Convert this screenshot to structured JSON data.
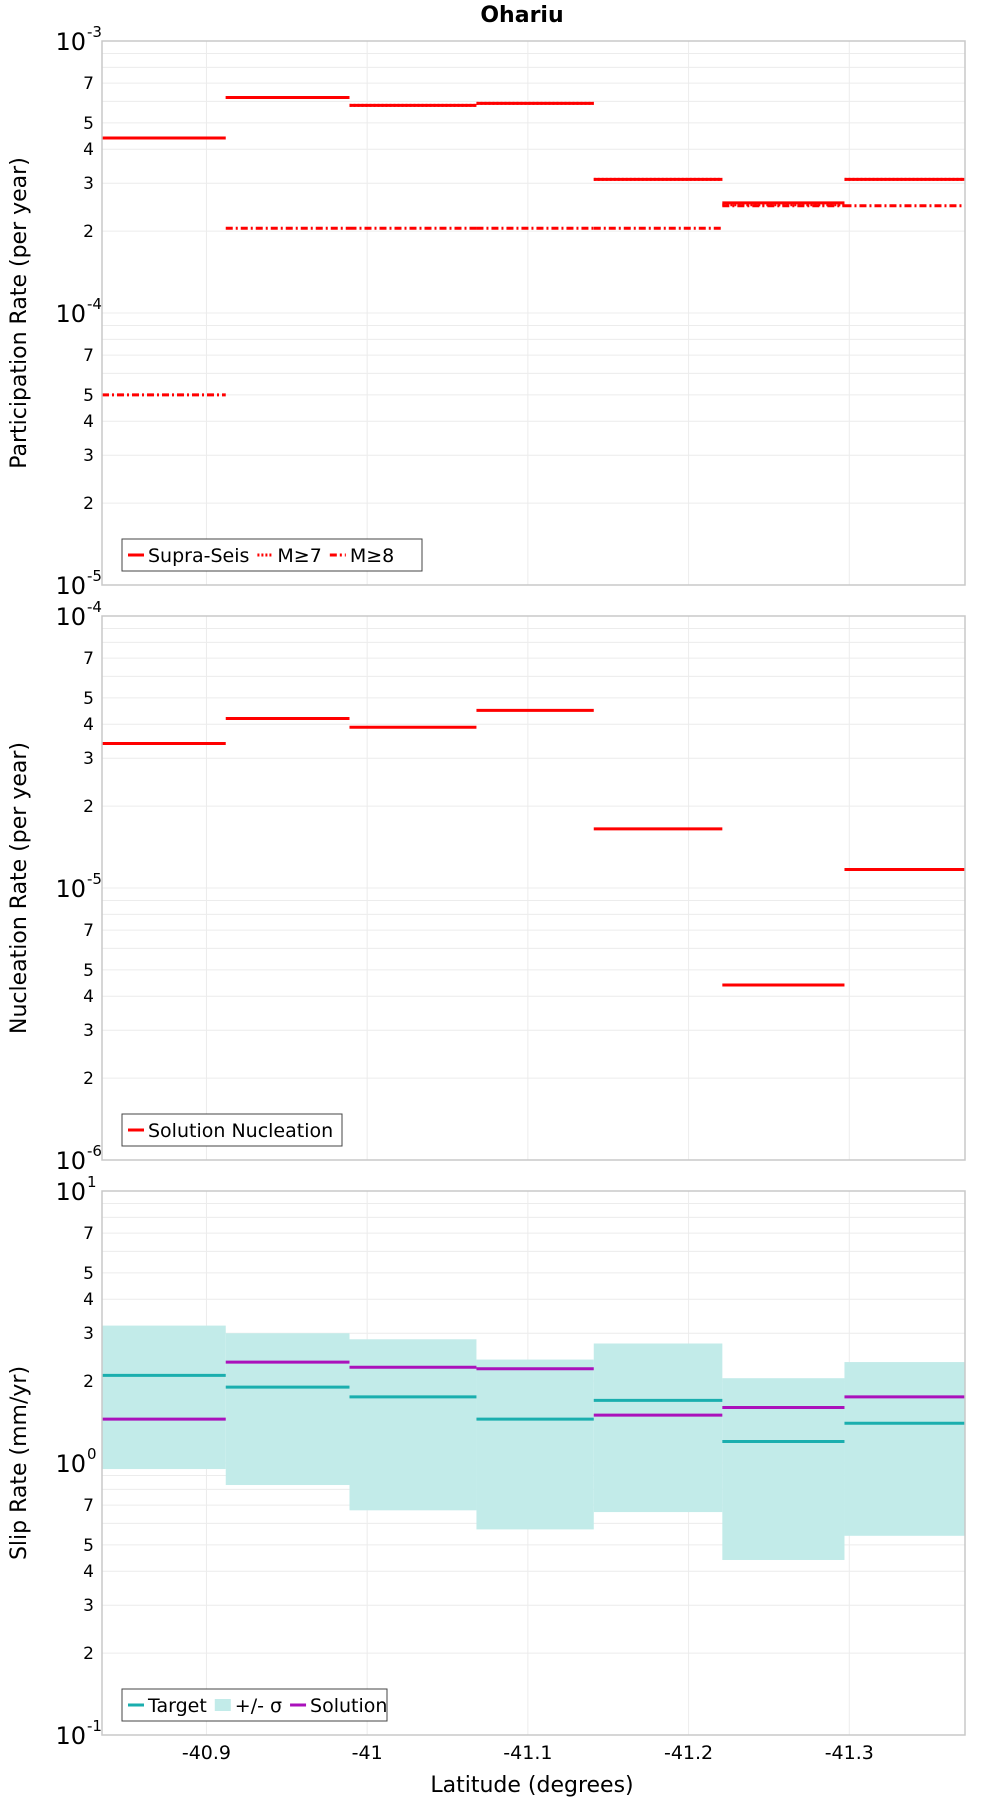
{
  "chart_data": {
    "title": "Ohariu",
    "xlabel": "Latitude (degrees)",
    "xlim": [
      -40.835,
      -41.372
    ],
    "xticks": [
      -40.9,
      -41,
      -41.1,
      -41.2,
      -41.3
    ],
    "xtick_labels": [
      "-40.9",
      "-41",
      "-41.1",
      "-41.2",
      "-41.3"
    ],
    "grid": true,
    "panels": [
      {
        "type": "step",
        "ylabel": "Participation Rate (per year)",
        "yscale": "log",
        "ylim": [
          1e-05,
          0.001
        ],
        "major_ticks": [
          {
            "base": "10",
            "exp": "-5"
          },
          {
            "base": "10",
            "exp": "-4"
          },
          {
            "base": "10",
            "exp": "-3"
          }
        ],
        "legend_position": "bottom-left",
        "series": [
          {
            "name": "Supra-Seis",
            "color": "#ff0000",
            "dash": "solid",
            "segments": [
              [
                -40.835,
                -40.912,
                0.00044
              ],
              [
                -40.912,
                -40.989,
                0.00062
              ],
              [
                -40.989,
                -41.068,
                0.00058
              ],
              [
                -41.068,
                -41.141,
                0.00059
              ],
              [
                -41.141,
                -41.221,
                0.00031
              ],
              [
                -41.221,
                -41.297,
                0.000254
              ],
              [
                -41.297,
                -41.372,
                0.00031
              ]
            ]
          },
          {
            "name": "M≥7",
            "color": "#ff0000",
            "dash": "dotted",
            "segments": [
              [
                -40.835,
                -40.912,
                0.00044
              ],
              [
                -40.912,
                -40.989,
                0.00062
              ],
              [
                -40.989,
                -41.068,
                0.00058
              ],
              [
                -41.068,
                -41.141,
                0.00059
              ],
              [
                -41.141,
                -41.221,
                0.00031
              ],
              [
                -41.221,
                -41.297,
                0.00025
              ],
              [
                -41.297,
                -41.372,
                0.00031
              ]
            ]
          },
          {
            "name": "M≥8",
            "color": "#ff0000",
            "dash": "dashdot",
            "segments": [
              [
                -40.835,
                -40.912,
                5e-05
              ],
              [
                -40.912,
                -40.989,
                0.000205
              ],
              [
                -40.989,
                -41.068,
                0.000205
              ],
              [
                -41.068,
                -41.141,
                0.000205
              ],
              [
                -41.141,
                -41.221,
                0.000205
              ],
              [
                -41.221,
                -41.297,
                0.000248
              ],
              [
                -41.297,
                -41.372,
                0.000248
              ]
            ]
          }
        ]
      },
      {
        "type": "step",
        "ylabel": "Nucleation Rate (per year)",
        "yscale": "log",
        "ylim": [
          1e-06,
          0.0001
        ],
        "major_ticks": [
          {
            "base": "10",
            "exp": "-6"
          },
          {
            "base": "10",
            "exp": "-5"
          },
          {
            "base": "10",
            "exp": "-4"
          }
        ],
        "legend_position": "bottom-left",
        "series": [
          {
            "name": "Solution Nucleation",
            "color": "#ff0000",
            "dash": "solid",
            "segments": [
              [
                -40.835,
                -40.912,
                3.4e-05
              ],
              [
                -40.912,
                -40.989,
                4.2e-05
              ],
              [
                -40.989,
                -41.068,
                3.9e-05
              ],
              [
                -41.068,
                -41.141,
                4.5e-05
              ],
              [
                -41.141,
                -41.221,
                1.65e-05
              ],
              [
                -41.221,
                -41.297,
                4.4e-06
              ],
              [
                -41.297,
                -41.372,
                1.17e-05
              ]
            ]
          }
        ]
      },
      {
        "type": "step",
        "ylabel": "Slip Rate (mm/yr)",
        "yscale": "log",
        "ylim": [
          0.1,
          10
        ],
        "major_ticks": [
          {
            "base": "10",
            "exp": "-1"
          },
          {
            "base": "10",
            "exp": "0"
          },
          {
            "base": "10",
            "exp": "1"
          }
        ],
        "legend_position": "bottom-left",
        "band": {
          "name": "+/- σ",
          "color": "#c2ebe9",
          "segments": [
            [
              -40.835,
              -40.912,
              0.95,
              3.2
            ],
            [
              -40.912,
              -40.989,
              0.83,
              3.0
            ],
            [
              -40.989,
              -41.068,
              0.67,
              2.85
            ],
            [
              -41.068,
              -41.141,
              0.57,
              2.4
            ],
            [
              -41.141,
              -41.221,
              0.66,
              2.75
            ],
            [
              -41.221,
              -41.297,
              0.44,
              2.05
            ],
            [
              -41.297,
              -41.372,
              0.54,
              2.35
            ]
          ]
        },
        "series": [
          {
            "name": "Target",
            "color": "#1aaeae",
            "dash": "solid",
            "segments": [
              [
                -40.835,
                -40.912,
                2.1
              ],
              [
                -40.912,
                -40.989,
                1.9
              ],
              [
                -40.989,
                -41.068,
                1.75
              ],
              [
                -41.068,
                -41.141,
                1.45
              ],
              [
                -41.141,
                -41.221,
                1.7
              ],
              [
                -41.221,
                -41.297,
                1.2
              ],
              [
                -41.297,
                -41.372,
                1.4
              ]
            ]
          },
          {
            "name": "Solution",
            "color": "#aa11bb",
            "dash": "solid",
            "segments": [
              [
                -40.835,
                -40.912,
                1.45
              ],
              [
                -40.912,
                -40.989,
                2.35
              ],
              [
                -40.989,
                -41.068,
                2.25
              ],
              [
                -41.068,
                -41.141,
                2.22
              ],
              [
                -41.141,
                -41.221,
                1.5
              ],
              [
                -41.221,
                -41.297,
                1.6
              ],
              [
                -41.297,
                -41.372,
                1.75
              ]
            ]
          }
        ]
      }
    ]
  }
}
